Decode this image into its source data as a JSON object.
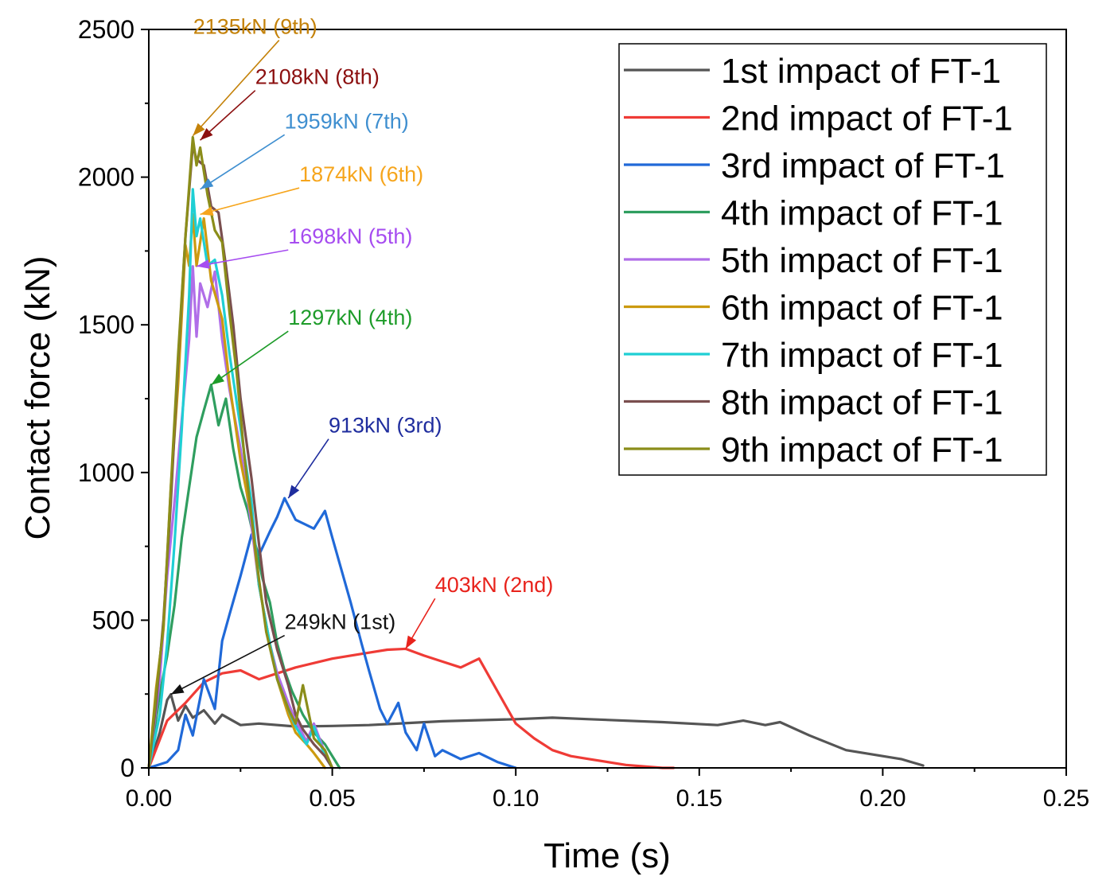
{
  "chart_data": {
    "type": "line",
    "title": "",
    "xlabel": "Time (s)",
    "ylabel": "Contact force (kN)",
    "xlim": [
      0,
      0.25
    ],
    "ylim": [
      0,
      2500
    ],
    "xticks": [
      0,
      0.05,
      0.1,
      0.15,
      0.2,
      0.25
    ],
    "xtick_labels": [
      "0.00",
      "0.05",
      "0.10",
      "0.15",
      "0.20",
      "0.25"
    ],
    "yticks": [
      0,
      500,
      1000,
      1500,
      2000,
      2500
    ],
    "ytick_labels": [
      "0",
      "500",
      "1000",
      "1500",
      "2000",
      "2500"
    ],
    "legend_position": "top-right",
    "series": [
      {
        "name": "1st impact of FT-1",
        "color": "#555555",
        "x": [
          0,
          0.003,
          0.005,
          0.006,
          0.008,
          0.01,
          0.012,
          0.015,
          0.018,
          0.02,
          0.025,
          0.03,
          0.04,
          0.05,
          0.06,
          0.08,
          0.1,
          0.11,
          0.12,
          0.14,
          0.155,
          0.162,
          0.168,
          0.172,
          0.18,
          0.19,
          0.2,
          0.205,
          0.211
        ],
        "y": [
          0,
          120,
          230,
          249,
          160,
          210,
          170,
          195,
          150,
          180,
          145,
          150,
          140,
          142,
          145,
          158,
          165,
          170,
          165,
          155,
          145,
          160,
          145,
          155,
          110,
          60,
          40,
          30,
          8
        ]
      },
      {
        "name": "2nd impact of FT-1",
        "color": "#ef3b36",
        "x": [
          0,
          0.005,
          0.01,
          0.015,
          0.02,
          0.025,
          0.03,
          0.035,
          0.04,
          0.05,
          0.06,
          0.065,
          0.07,
          0.075,
          0.08,
          0.085,
          0.09,
          0.095,
          0.1,
          0.105,
          0.11,
          0.115,
          0.12,
          0.13,
          0.14,
          0.143
        ],
        "y": [
          0,
          160,
          220,
          290,
          320,
          330,
          300,
          320,
          340,
          370,
          390,
          400,
          403,
          380,
          360,
          340,
          370,
          260,
          150,
          100,
          60,
          40,
          30,
          10,
          0,
          0
        ]
      },
      {
        "name": "3rd impact of FT-1",
        "color": "#2069d8",
        "x": [
          0,
          0.005,
          0.008,
          0.01,
          0.012,
          0.015,
          0.018,
          0.02,
          0.022,
          0.025,
          0.028,
          0.03,
          0.033,
          0.035,
          0.037,
          0.04,
          0.045,
          0.048,
          0.05,
          0.055,
          0.058,
          0.06,
          0.063,
          0.065,
          0.068,
          0.07,
          0.073,
          0.075,
          0.078,
          0.08,
          0.085,
          0.09,
          0.095,
          0.1
        ],
        "y": [
          0,
          20,
          60,
          180,
          110,
          300,
          200,
          430,
          520,
          650,
          790,
          720,
          800,
          850,
          913,
          840,
          810,
          870,
          780,
          560,
          420,
          330,
          200,
          150,
          220,
          120,
          60,
          150,
          40,
          60,
          30,
          50,
          20,
          0
        ]
      },
      {
        "name": "4th impact of FT-1",
        "color": "#2f9e5f",
        "x": [
          0,
          0.003,
          0.005,
          0.007,
          0.009,
          0.011,
          0.013,
          0.015,
          0.017,
          0.019,
          0.021,
          0.023,
          0.025,
          0.027,
          0.029,
          0.031,
          0.033,
          0.035,
          0.037,
          0.039,
          0.042,
          0.045,
          0.048,
          0.05,
          0.052
        ],
        "y": [
          0,
          250,
          380,
          550,
          780,
          950,
          1120,
          1210,
          1297,
          1160,
          1250,
          1080,
          950,
          870,
          760,
          640,
          560,
          420,
          330,
          260,
          180,
          120,
          80,
          40,
          0
        ]
      },
      {
        "name": "5th impact of FT-1",
        "color": "#b06ee8",
        "x": [
          0,
          0.003,
          0.005,
          0.007,
          0.009,
          0.011,
          0.012,
          0.013,
          0.014,
          0.016,
          0.018,
          0.02,
          0.022,
          0.025,
          0.028,
          0.03,
          0.033,
          0.035,
          0.038,
          0.04,
          0.043,
          0.045,
          0.048,
          0.05
        ],
        "y": [
          0,
          300,
          650,
          900,
          1180,
          1450,
          1698,
          1460,
          1640,
          1560,
          1680,
          1450,
          1280,
          1080,
          820,
          620,
          420,
          320,
          220,
          160,
          90,
          150,
          50,
          0
        ]
      },
      {
        "name": "6th impact of FT-1",
        "color": "#cc9a10",
        "x": [
          0,
          0.002,
          0.004,
          0.006,
          0.008,
          0.01,
          0.011,
          0.012,
          0.013,
          0.015,
          0.017,
          0.02,
          0.022,
          0.025,
          0.028,
          0.03,
          0.033,
          0.035,
          0.038,
          0.04,
          0.043,
          0.045,
          0.048
        ],
        "y": [
          0,
          270,
          470,
          950,
          1300,
          1770,
          1700,
          1874,
          1700,
          1860,
          1650,
          1520,
          1300,
          1040,
          850,
          620,
          420,
          300,
          180,
          120,
          80,
          50,
          0
        ]
      },
      {
        "name": "7th impact of FT-1",
        "color": "#1fcfd4",
        "x": [
          0,
          0.003,
          0.005,
          0.007,
          0.009,
          0.011,
          0.012,
          0.013,
          0.014,
          0.016,
          0.018,
          0.02,
          0.022,
          0.025,
          0.028,
          0.03,
          0.033,
          0.035,
          0.038,
          0.04,
          0.043,
          0.045,
          0.048,
          0.05
        ],
        "y": [
          0,
          180,
          420,
          760,
          1150,
          1600,
          1959,
          1800,
          1860,
          1700,
          1720,
          1600,
          1400,
          1150,
          900,
          620,
          420,
          300,
          200,
          140,
          80,
          140,
          40,
          0
        ]
      },
      {
        "name": "8th impact of FT-1",
        "color": "#7a4f4f",
        "x": [
          0,
          0.002,
          0.004,
          0.006,
          0.008,
          0.01,
          0.012,
          0.013,
          0.015,
          0.017,
          0.019,
          0.021,
          0.023,
          0.025,
          0.028,
          0.03,
          0.032,
          0.035,
          0.038,
          0.04,
          0.042,
          0.045,
          0.048,
          0.05
        ],
        "y": [
          0,
          220,
          500,
          900,
          1380,
          1800,
          2108,
          2060,
          2040,
          1900,
          1880,
          1700,
          1500,
          1250,
          980,
          760,
          560,
          400,
          280,
          180,
          130,
          80,
          40,
          0
        ]
      },
      {
        "name": "9th impact of FT-1",
        "color": "#8b8d1a",
        "x": [
          0,
          0.002,
          0.004,
          0.006,
          0.008,
          0.01,
          0.012,
          0.013,
          0.014,
          0.016,
          0.018,
          0.02,
          0.022,
          0.024,
          0.026,
          0.028,
          0.03,
          0.032,
          0.035,
          0.038,
          0.04,
          0.042,
          0.045,
          0.048,
          0.05
        ],
        "y": [
          0,
          250,
          480,
          950,
          1400,
          1800,
          2135,
          2040,
          2100,
          1940,
          1820,
          1780,
          1540,
          1330,
          1060,
          850,
          640,
          460,
          300,
          200,
          150,
          280,
          100,
          60,
          0
        ]
      }
    ],
    "annotations": [
      {
        "text": "249kN (1st)",
        "color": "#111111",
        "point": [
          0.006,
          249
        ],
        "label_at": [
          0.037,
          470
        ],
        "anchor": "start"
      },
      {
        "text": "403kN (2nd)",
        "color": "#e8231c",
        "point": [
          0.07,
          403
        ],
        "label_at": [
          0.078,
          595
        ],
        "anchor": "start"
      },
      {
        "text": "913kN (3rd)",
        "color": "#1f2d9e",
        "point": [
          0.038,
          913
        ],
        "label_at": [
          0.049,
          1135
        ],
        "anchor": "start"
      },
      {
        "text": "1297kN (4th)",
        "color": "#1e9c2a",
        "point": [
          0.017,
          1297
        ],
        "label_at": [
          0.038,
          1500
        ],
        "anchor": "start"
      },
      {
        "text": "1698kN (5th)",
        "color": "#a64cf0",
        "point": [
          0.013,
          1698
        ],
        "label_at": [
          0.038,
          1775
        ],
        "anchor": "start"
      },
      {
        "text": "1874kN (6th)",
        "color": "#f6a51c",
        "point": [
          0.014,
          1874
        ],
        "label_at": [
          0.041,
          1985
        ],
        "anchor": "start"
      },
      {
        "text": "1959kN (7th)",
        "color": "#3f8fd0",
        "point": [
          0.014,
          1959
        ],
        "label_at": [
          0.037,
          2165
        ],
        "anchor": "start"
      },
      {
        "text": "2108kN (8th)",
        "color": "#8c1010",
        "point": [
          0.014,
          2125
        ],
        "label_at": [
          0.029,
          2315
        ],
        "anchor": "start"
      },
      {
        "text": "2135kN (9th)",
        "color": "#c4820a",
        "point": [
          0.012,
          2140
        ],
        "label_at": [
          0.029,
          2485
        ],
        "anchor": "middle"
      }
    ]
  }
}
